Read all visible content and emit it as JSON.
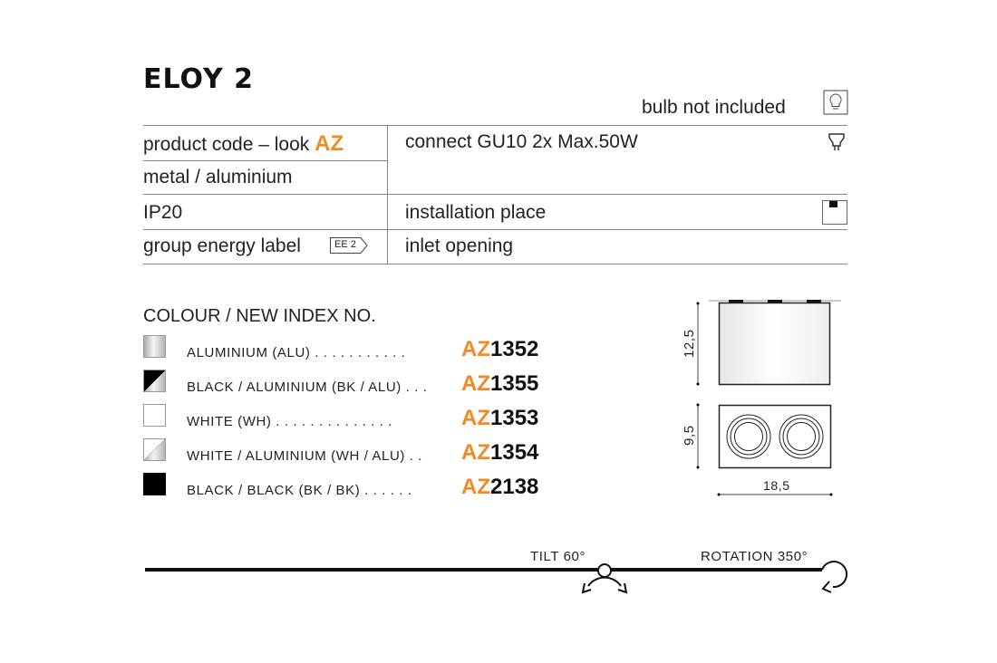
{
  "title": "ELOY 2",
  "bulb_note": "bulb not included",
  "specs": {
    "product_code_label": "product code – look",
    "product_code_value": "AZ",
    "material": "metal / aluminium",
    "ip": "IP20",
    "energy_label": "group energy label",
    "energy_badge": "EE 2",
    "connect": "connect GU10 2x Max.50W",
    "installation": "installation place",
    "inlet": "inlet opening"
  },
  "colour_heading": "COLOUR / NEW INDEX NO.",
  "colours": [
    {
      "label": "ALUMINIUM (ALU)",
      "dots": ". . . . . . . . . . .",
      "prefix": "AZ",
      "number": "1352",
      "swatch": "aluminium"
    },
    {
      "label": "BLACK / ALUMINIUM (BK / ALU)",
      "dots": ". . .",
      "prefix": "AZ",
      "number": "1355",
      "swatch": "black-aluminium"
    },
    {
      "label": "WHITE (WH)",
      "dots": ". . . . . . . . . . . . . .",
      "prefix": "AZ",
      "number": "1353",
      "swatch": "white"
    },
    {
      "label": "WHITE / ALUMINIUM (WH / ALU)",
      "dots": " . .",
      "prefix": "AZ",
      "number": "1354",
      "swatch": "white-aluminium"
    },
    {
      "label": "BLACK / BLACK (BK / BK)",
      "dots": ". . . . . .",
      "prefix": "AZ",
      "number": "2138",
      "swatch": "black"
    }
  ],
  "dimensions": {
    "height": "12,5",
    "depth": "9,5",
    "width": "18,5"
  },
  "tilt": "TILT 60°",
  "rotation": "ROTATION 350°",
  "colors": {
    "accent": "#f08a24",
    "text": "#222222",
    "rule": "#888888"
  }
}
